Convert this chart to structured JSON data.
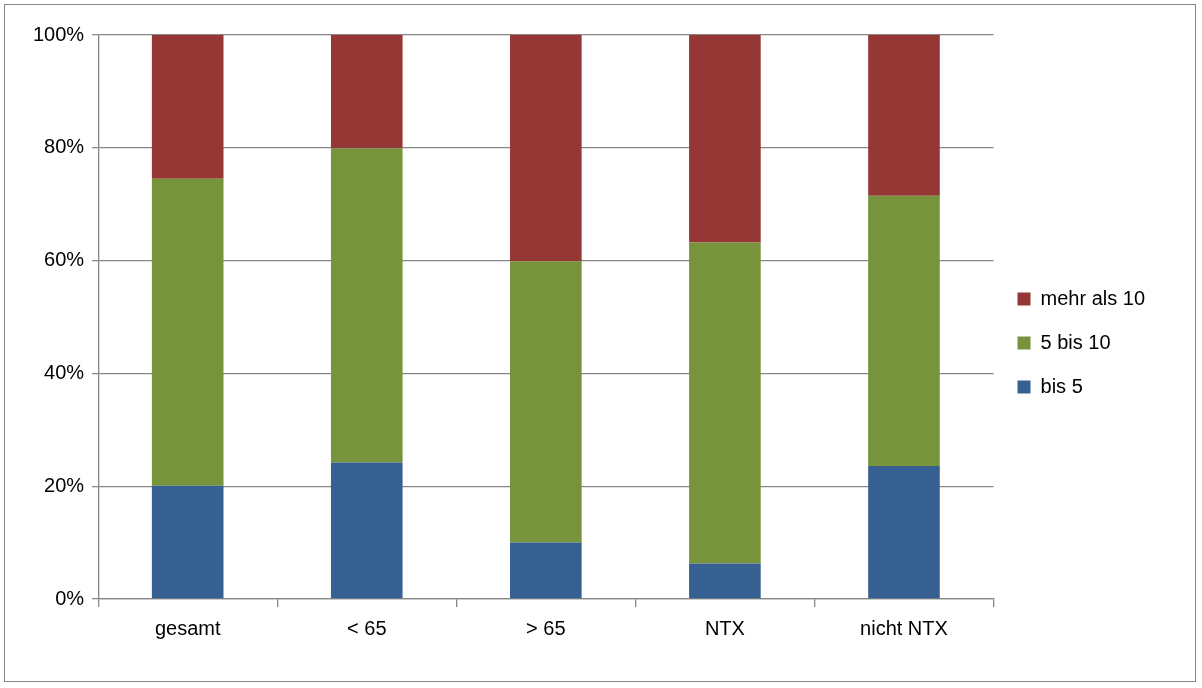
{
  "chart_data": {
    "type": "bar",
    "stacked": true,
    "categories": [
      "gesamt",
      "< 65",
      "> 65",
      "NTX",
      "nicht NTX"
    ],
    "series": [
      {
        "name": "bis 5",
        "color": "#376092",
        "values": [
          20.1,
          24.2,
          10,
          6.3,
          23.6
        ]
      },
      {
        "name": "5 bis 10",
        "color": "#77933c",
        "values": [
          54.4,
          55.7,
          49.9,
          56.9,
          47.9
        ]
      },
      {
        "name": "mehr als 10",
        "color": "#953735",
        "values": [
          25.5,
          20.1,
          40.1,
          36.8,
          28.5
        ]
      }
    ],
    "ylim": [
      0,
      100
    ],
    "yticks": [
      {
        "value": 0,
        "label": "0%"
      },
      {
        "value": 20,
        "label": "20%"
      },
      {
        "value": 40,
        "label": "40%"
      },
      {
        "value": 60,
        "label": "60%"
      },
      {
        "value": 80,
        "label": "80%"
      },
      {
        "value": 100,
        "label": "100%"
      }
    ],
    "grid": "y",
    "legend": "right"
  }
}
